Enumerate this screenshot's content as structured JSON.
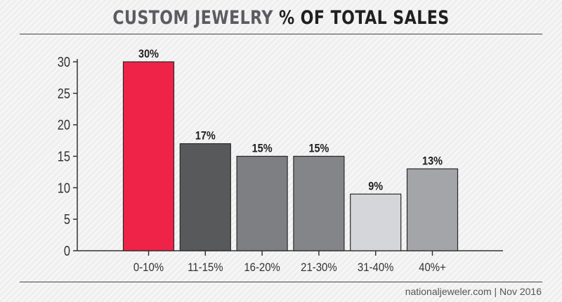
{
  "title": {
    "part1": "CUSTOM JEWELRY",
    "part2": "% OF TOTAL SALES"
  },
  "footer": {
    "source": "nationaljeweler.com | Nov 2016"
  },
  "chart_data": {
    "type": "bar",
    "title": "CUSTOM JEWELRY % OF TOTAL SALES",
    "categories": [
      "0-10%",
      "11-15%",
      "16-20%",
      "21-30%",
      "31-40%",
      "40%+"
    ],
    "values": [
      30,
      17,
      15,
      15,
      9,
      13
    ],
    "value_labels": [
      "30%",
      "17%",
      "15%",
      "15%",
      "9%",
      "13%"
    ],
    "bar_colors": [
      "#ee2347",
      "#58595b",
      "#7e7f83",
      "#848589",
      "#d5d6d9",
      "#a4a5a9"
    ],
    "yticks": [
      0,
      5,
      10,
      15,
      20,
      25,
      30
    ],
    "ylim": [
      0,
      30
    ],
    "xlabel": "",
    "ylabel": "",
    "grid": false,
    "legend": "none"
  }
}
